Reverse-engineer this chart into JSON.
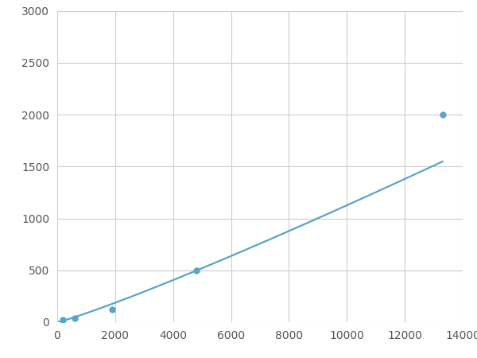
{
  "x_points": [
    200,
    600,
    1900,
    4800,
    13300
  ],
  "y_points": [
    20,
    40,
    120,
    500,
    2000
  ],
  "line_color": "#5ba3c9",
  "marker_color": "#5ba3c9",
  "marker_size": 6,
  "line_width": 1.6,
  "xlim": [
    0,
    14000
  ],
  "ylim": [
    0,
    3000
  ],
  "xticks": [
    0,
    2000,
    4000,
    6000,
    8000,
    10000,
    12000,
    14000
  ],
  "yticks": [
    0,
    500,
    1000,
    1500,
    2000,
    2500,
    3000
  ],
  "grid_color": "#cccccc",
  "background_color": "#ffffff",
  "tick_label_color": "#555555",
  "tick_fontsize": 10
}
